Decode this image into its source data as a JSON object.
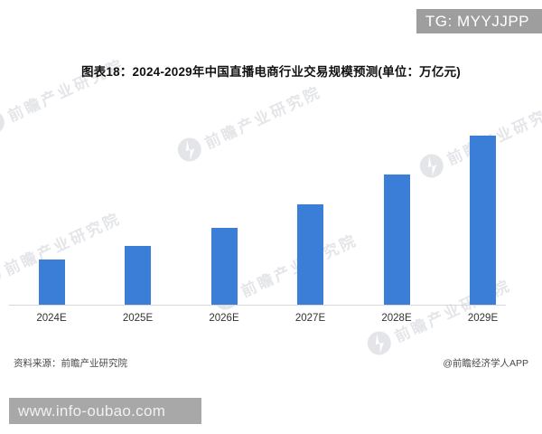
{
  "page": {
    "tg_badge": "TG: MYYJJPP",
    "url_bar": "www.info-oubao.com"
  },
  "header": {
    "title": "图表18：2024-2029年中国直播电商行业交易规模预测(单位：万亿元)"
  },
  "watermark": {
    "text": "前瞻产业研究院"
  },
  "footer": {
    "source": "资料来源：前瞻产业研究院",
    "credit": "@前瞻经济学人APP"
  },
  "colors": {
    "bar": "#3b7ed8",
    "badge_bg": "#9e9e9e",
    "url_bar_bg": "#a8a8a8",
    "axis_line": "#d9d9d9"
  },
  "chart_data": {
    "type": "bar",
    "title": "2024-2029年中国直播电商行业交易规模预测",
    "unit": "万亿元",
    "categories": [
      "2024E",
      "2025E",
      "2026E",
      "2027E",
      "2028E",
      "2029E"
    ],
    "values": [
      5.1,
      6.6,
      8.6,
      11.2,
      14.5,
      18.8
    ],
    "values_note": "estimated from bar heights; chart shows no numeric data labels",
    "value_labels_shown": false,
    "y_axis_shown": false,
    "gridlines": false,
    "ylim": [
      0,
      20
    ],
    "bar_color": "#3b7ed8",
    "xlabel": "",
    "ylabel": ""
  }
}
